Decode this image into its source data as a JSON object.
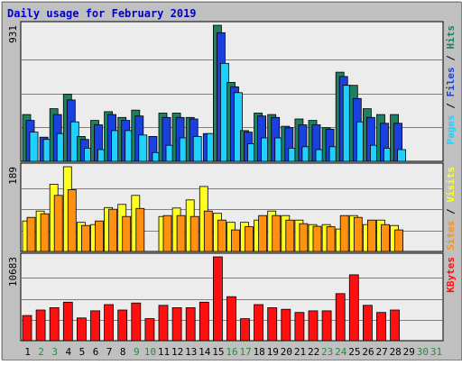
{
  "title": "Daily usage for February 2019",
  "colors": {
    "frame": "#c0c0c0",
    "panel": "#ececec",
    "grid": "#808080",
    "title_text": "#0000cc",
    "hits": "#1f7f5f",
    "files": "#1a40e0",
    "pages": "#20d0ff",
    "visits": "#ffff20",
    "sites": "#ff9010",
    "kbytes": "#ff1010",
    "weekend_label": "#1f8f3f",
    "day_label": "#000000",
    "empty_day_label": "#1f8f3f"
  },
  "days": [
    "1",
    "2",
    "3",
    "4",
    "5",
    "6",
    "7",
    "8",
    "9",
    "10",
    "11",
    "12",
    "13",
    "14",
    "15",
    "16",
    "17",
    "18",
    "19",
    "20",
    "21",
    "22",
    "23",
    "24",
    "25",
    "26",
    "27",
    "28",
    "29",
    "30",
    "31"
  ],
  "weekend_days": [
    "2",
    "3",
    "9",
    "10",
    "16",
    "17",
    "23",
    "24",
    "30",
    "31"
  ],
  "chart_data": [
    {
      "type": "bar",
      "name": "hits-files-pages",
      "ymax_label": "931",
      "ylim": [
        0,
        931
      ],
      "legend": [
        {
          "text": "Pages",
          "color": "#20d0ff"
        },
        {
          "text": " / ",
          "color": "#000000"
        },
        {
          "text": "Files",
          "color": "#1a40e0"
        },
        {
          "text": " / ",
          "color": "#000000"
        },
        {
          "text": "Hits",
          "color": "#1f7f5f"
        }
      ],
      "series": [
        {
          "name": "Hits",
          "values": [
            320,
            null,
            360,
            460,
            170,
            280,
            340,
            300,
            350,
            null,
            330,
            330,
            300,
            null,
            931,
            540,
            210,
            330,
            320,
            240,
            290,
            280,
            230,
            610,
            520,
            360,
            320,
            320,
            null,
            null,
            null
          ]
        },
        {
          "name": "Files",
          "values": [
            280,
            165,
            320,
            420,
            150,
            250,
            320,
            280,
            310,
            170,
            300,
            300,
            290,
            190,
            880,
            510,
            200,
            310,
            300,
            230,
            250,
            250,
            220,
            580,
            430,
            300,
            260,
            260,
            null,
            null,
            null
          ]
        },
        {
          "name": "Pages",
          "values": [
            200,
            150,
            190,
            270,
            90,
            80,
            210,
            210,
            180,
            60,
            110,
            160,
            170,
            190,
            670,
            470,
            120,
            160,
            160,
            90,
            100,
            80,
            100,
            520,
            270,
            110,
            90,
            80,
            null,
            null,
            null
          ]
        }
      ]
    },
    {
      "type": "bar",
      "name": "visits-sites",
      "ymax_label": "189",
      "ylim": [
        0,
        189
      ],
      "legend": [
        {
          "text": "Sites",
          "color": "#ff9010"
        },
        {
          "text": " / ",
          "color": "#000000"
        },
        {
          "text": "Visits",
          "color": "#ffff20"
        }
      ],
      "series": [
        {
          "name": "Visits",
          "values": [
            68,
            90,
            150,
            189,
            65,
            60,
            98,
            105,
            125,
            null,
            78,
            97,
            115,
            145,
            85,
            65,
            65,
            70,
            90,
            80,
            70,
            60,
            60,
            50,
            80,
            60,
            70,
            58,
            null,
            null,
            null
          ]
        },
        {
          "name": "Sites",
          "values": [
            76,
            84,
            125,
            138,
            58,
            68,
            94,
            78,
            96,
            null,
            80,
            80,
            78,
            90,
            70,
            48,
            55,
            80,
            80,
            70,
            62,
            56,
            55,
            80,
            76,
            70,
            60,
            48,
            null,
            null,
            null
          ]
        }
      ]
    },
    {
      "type": "bar",
      "name": "kbytes",
      "ymax_label": "10683",
      "ylim": [
        0,
        10683
      ],
      "legend": [
        {
          "text": "KBytes",
          "color": "#ff1010"
        }
      ],
      "series": [
        {
          "name": "KBytes",
          "values": [
            3200,
            3900,
            4200,
            4900,
            2900,
            3800,
            4600,
            3900,
            4800,
            2800,
            4500,
            4200,
            4200,
            4900,
            10683,
            5600,
            2800,
            4600,
            4200,
            4000,
            3600,
            3800,
            3800,
            6000,
            8400,
            4500,
            3600,
            3900,
            null,
            null,
            null
          ]
        }
      ]
    }
  ]
}
